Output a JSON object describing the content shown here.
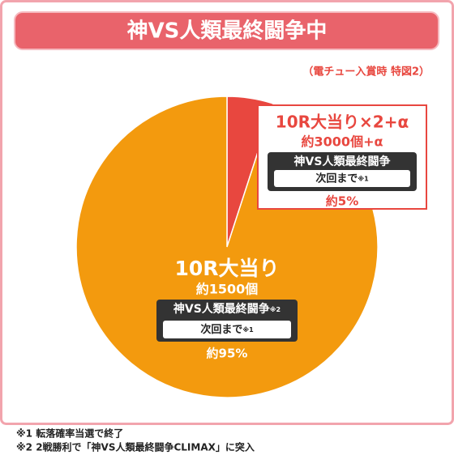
{
  "chart_data": {
    "type": "pie",
    "title": "神VS人類最終闘争中",
    "subtitle": "（電チュー入賞時 特図2）",
    "categories": [
      "10R大当り×2+α",
      "10R大当り"
    ],
    "values": [
      5,
      95
    ],
    "value_labels": [
      "約5%",
      "約95%"
    ],
    "colors": [
      "#e8473f",
      "#f39a0e"
    ],
    "details": [
      {
        "payout": "約3000個+α",
        "mode": "神VS人類最終闘争",
        "next": "次回まで",
        "next_note": "※1"
      },
      {
        "payout": "約1500個",
        "mode": "神VS人類最終闘争",
        "mode_note": "※2",
        "next": "次回まで",
        "next_note": "※1"
      }
    ],
    "footnotes": [
      "※1 転落確率当選で終了",
      "※2 2戦勝利で「神VS人類最終闘争CLIMAX」に突入"
    ]
  }
}
